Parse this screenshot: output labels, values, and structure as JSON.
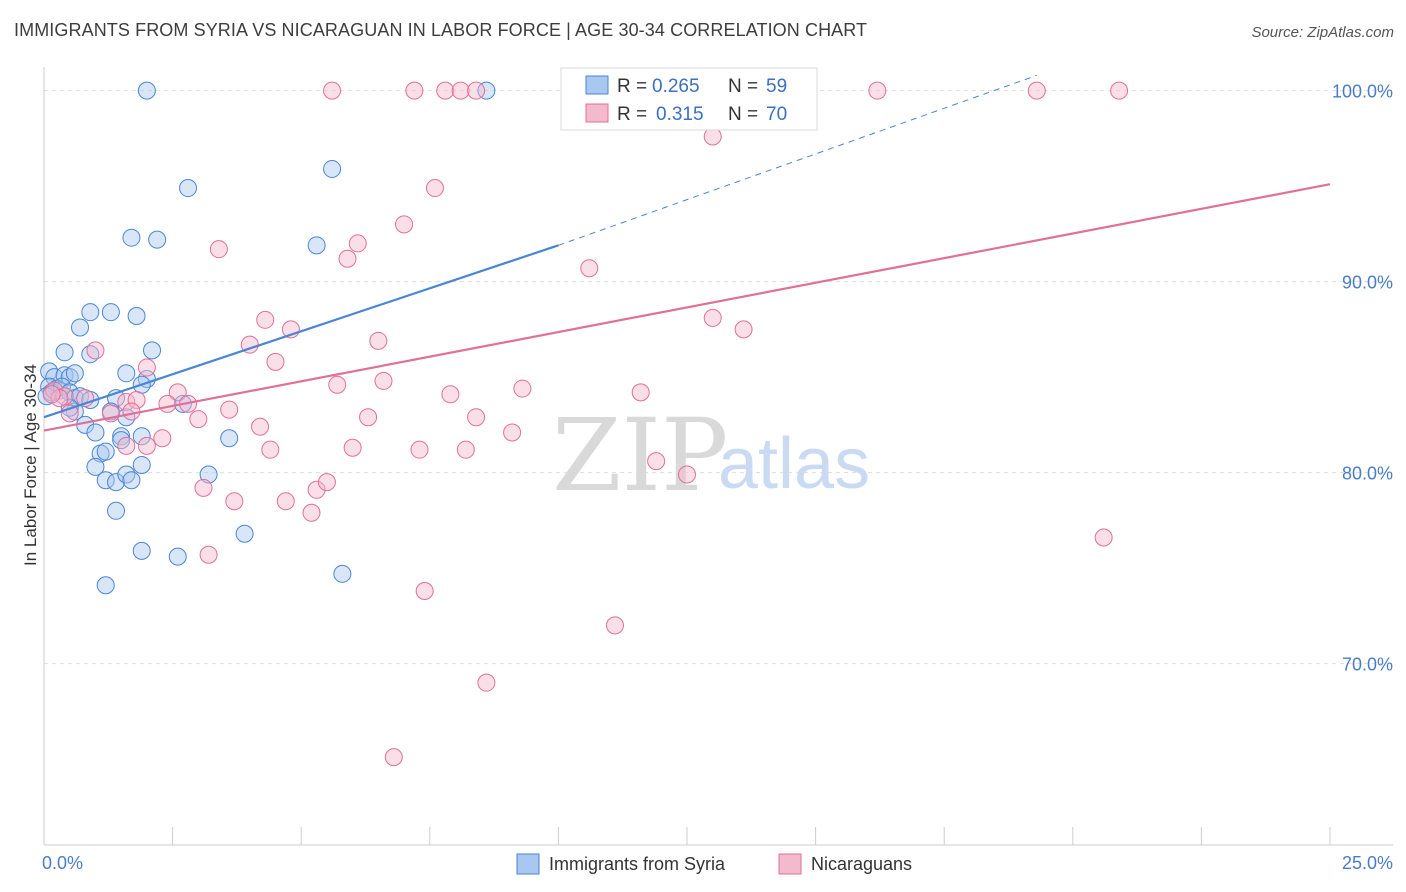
{
  "title": "IMMIGRANTS FROM SYRIA VS NICARAGUAN IN LABOR FORCE | AGE 30-34 CORRELATION CHART",
  "source": "Source: ZipAtlas.com",
  "watermark": {
    "zip": "ZIP",
    "atlas": "atlas"
  },
  "colors": {
    "blue": "#4a86d4",
    "blue_fill": "#a9c8ef",
    "pink": "#e07098",
    "pink_fill": "#f3b9cd",
    "grid": "#dddddd",
    "tick_text": "#4a7cc9"
  },
  "legend": {
    "r_label": "R =",
    "n_label": "N =",
    "rows": [
      {
        "series": "Immigrants from Syria",
        "r": "0.265",
        "n": "59"
      },
      {
        "series": "Nicaraguans",
        "r": "0.315",
        "n": "70"
      }
    ]
  },
  "chart_data": {
    "type": "scatter",
    "title": "IMMIGRANTS FROM SYRIA VS NICARAGUAN IN LABOR FORCE | AGE 30-34 CORRELATION CHART",
    "xlabel": "",
    "ylabel": "In Labor Force | Age 30-34",
    "xlim": [
      0,
      25
    ],
    "ylim": [
      60.5,
      101.5
    ],
    "x_tick_labels": [
      "0.0%",
      "25.0%"
    ],
    "y_ticks": [
      70,
      80,
      90,
      100
    ],
    "y_tick_labels": [
      "70.0%",
      "80.0%",
      "90.0%",
      "100.0%"
    ],
    "grid": true,
    "legend_position": "top-center",
    "series": [
      {
        "name": "Immigrants from Syria",
        "color": "#4a86d4",
        "trend": {
          "x": [
            0,
            10
          ],
          "y": [
            82.9,
            91.9
          ],
          "dashed_to": [
            19.3,
            100.8
          ]
        },
        "points": [
          [
            2.0,
            100.0
          ],
          [
            8.6,
            100.0
          ],
          [
            5.6,
            95.9
          ],
          [
            2.8,
            94.9
          ],
          [
            1.7,
            92.3
          ],
          [
            2.2,
            92.2
          ],
          [
            5.3,
            91.9
          ],
          [
            0.9,
            88.4
          ],
          [
            1.3,
            88.4
          ],
          [
            1.8,
            88.2
          ],
          [
            0.7,
            87.6
          ],
          [
            0.4,
            86.3
          ],
          [
            0.9,
            86.2
          ],
          [
            2.1,
            86.4
          ],
          [
            0.1,
            85.3
          ],
          [
            0.2,
            85.0
          ],
          [
            0.4,
            85.1
          ],
          [
            0.5,
            85.0
          ],
          [
            0.6,
            85.2
          ],
          [
            1.6,
            85.2
          ],
          [
            2.0,
            84.9
          ],
          [
            1.9,
            84.6
          ],
          [
            0.1,
            84.5
          ],
          [
            0.25,
            84.4
          ],
          [
            0.3,
            84.3
          ],
          [
            0.15,
            84.2
          ],
          [
            0.35,
            84.5
          ],
          [
            0.5,
            84.2
          ],
          [
            0.6,
            83.9
          ],
          [
            0.7,
            84.0
          ],
          [
            0.9,
            83.8
          ],
          [
            1.4,
            83.9
          ],
          [
            0.6,
            83.2
          ],
          [
            1.3,
            83.2
          ],
          [
            2.7,
            83.6
          ],
          [
            0.8,
            82.5
          ],
          [
            1.0,
            82.1
          ],
          [
            1.6,
            82.9
          ],
          [
            1.5,
            81.9
          ],
          [
            1.5,
            81.7
          ],
          [
            1.9,
            81.9
          ],
          [
            3.6,
            81.8
          ],
          [
            1.1,
            81.0
          ],
          [
            1.2,
            81.1
          ],
          [
            1.0,
            80.3
          ],
          [
            1.9,
            80.4
          ],
          [
            1.2,
            79.6
          ],
          [
            1.4,
            79.5
          ],
          [
            1.6,
            79.9
          ],
          [
            1.7,
            79.6
          ],
          [
            3.2,
            79.9
          ],
          [
            1.4,
            78.0
          ],
          [
            3.9,
            76.8
          ],
          [
            1.9,
            75.9
          ],
          [
            2.6,
            75.6
          ],
          [
            1.2,
            74.1
          ],
          [
            5.8,
            74.7
          ],
          [
            0.05,
            84.0
          ],
          [
            0.5,
            83.4
          ]
        ]
      },
      {
        "name": "Nicaraguans",
        "color": "#e07098",
        "trend": {
          "x": [
            0,
            25
          ],
          "y": [
            82.2,
            95.1
          ]
        },
        "points": [
          [
            5.6,
            100.0
          ],
          [
            7.2,
            100.0
          ],
          [
            7.8,
            100.0
          ],
          [
            8.1,
            100.0
          ],
          [
            8.4,
            100.0
          ],
          [
            16.2,
            100.0
          ],
          [
            19.3,
            100.0
          ],
          [
            20.9,
            100.0
          ],
          [
            10.3,
            98.9
          ],
          [
            13.0,
            97.6
          ],
          [
            7.6,
            94.9
          ],
          [
            7.0,
            93.0
          ],
          [
            3.4,
            91.7
          ],
          [
            6.1,
            92.0
          ],
          [
            5.9,
            91.2
          ],
          [
            10.6,
            90.7
          ],
          [
            4.3,
            88.0
          ],
          [
            4.8,
            87.5
          ],
          [
            13.0,
            88.1
          ],
          [
            13.6,
            87.5
          ],
          [
            1.0,
            86.4
          ],
          [
            4.0,
            86.7
          ],
          [
            6.5,
            86.9
          ],
          [
            4.5,
            85.8
          ],
          [
            2.0,
            85.5
          ],
          [
            0.2,
            84.3
          ],
          [
            0.4,
            84.0
          ],
          [
            0.8,
            83.9
          ],
          [
            1.6,
            83.7
          ],
          [
            1.8,
            83.8
          ],
          [
            2.6,
            84.2
          ],
          [
            2.4,
            83.6
          ],
          [
            2.8,
            83.6
          ],
          [
            3.6,
            83.3
          ],
          [
            5.7,
            84.6
          ],
          [
            6.6,
            84.8
          ],
          [
            7.9,
            84.1
          ],
          [
            9.3,
            84.4
          ],
          [
            11.6,
            84.2
          ],
          [
            0.5,
            83.1
          ],
          [
            1.7,
            83.2
          ],
          [
            1.3,
            83.1
          ],
          [
            3.0,
            82.8
          ],
          [
            4.2,
            82.4
          ],
          [
            6.3,
            82.9
          ],
          [
            8.4,
            82.9
          ],
          [
            9.1,
            82.1
          ],
          [
            1.6,
            81.4
          ],
          [
            2.0,
            81.4
          ],
          [
            2.3,
            81.8
          ],
          [
            4.4,
            81.2
          ],
          [
            6.0,
            81.3
          ],
          [
            7.3,
            81.2
          ],
          [
            8.2,
            81.2
          ],
          [
            11.9,
            80.6
          ],
          [
            12.5,
            79.9
          ],
          [
            3.1,
            79.2
          ],
          [
            5.3,
            79.1
          ],
          [
            5.5,
            79.5
          ],
          [
            3.7,
            78.5
          ],
          [
            4.7,
            78.5
          ],
          [
            5.2,
            77.9
          ],
          [
            3.2,
            75.7
          ],
          [
            20.6,
            76.6
          ],
          [
            7.4,
            73.8
          ],
          [
            11.1,
            72.0
          ],
          [
            8.6,
            69.0
          ],
          [
            6.8,
            65.1
          ],
          [
            0.3,
            83.9
          ],
          [
            0.15,
            84.1
          ]
        ]
      }
    ]
  }
}
